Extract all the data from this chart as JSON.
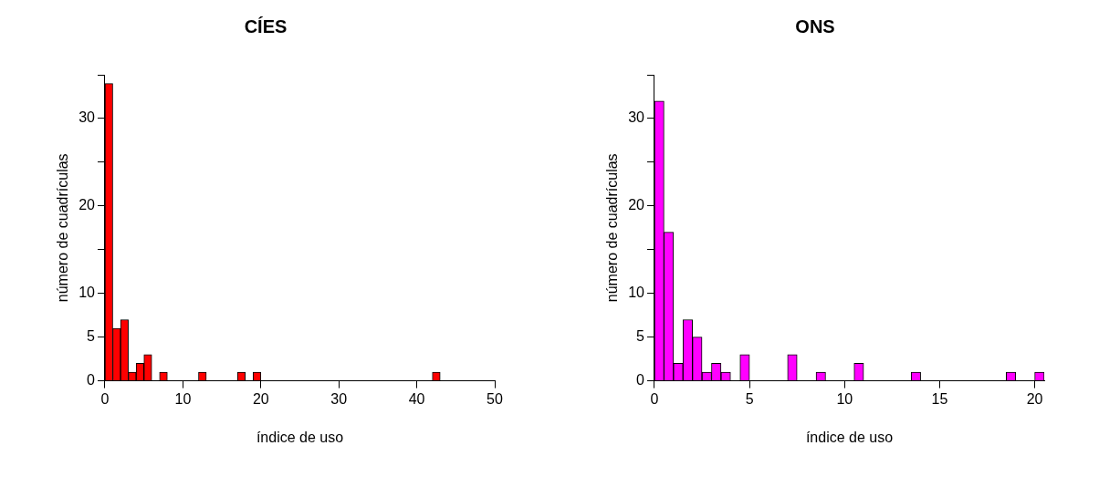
{
  "chart_data": [
    {
      "type": "histogram",
      "title": "CÍES",
      "xlabel": "índice de uso",
      "ylabel": "número de cuadrículas",
      "color": "#ff0000",
      "bins": [
        0,
        1,
        2,
        3,
        4,
        5,
        6,
        7,
        8,
        9,
        10,
        11,
        12,
        13,
        14,
        15,
        16,
        17,
        18,
        19,
        20,
        21,
        22,
        23,
        24,
        25,
        26,
        27,
        28,
        29,
        30,
        31,
        32,
        33,
        34,
        35,
        36,
        37,
        38,
        39,
        40,
        41,
        42,
        43
      ],
      "values": [
        34,
        6,
        7,
        1,
        2,
        3,
        0,
        1,
        0,
        0,
        0,
        0,
        1,
        0,
        0,
        0,
        0,
        1,
        0,
        1,
        0,
        0,
        0,
        0,
        0,
        0,
        0,
        0,
        0,
        0,
        0,
        0,
        0,
        0,
        0,
        0,
        0,
        0,
        0,
        0,
        0,
        0,
        1
      ],
      "xlim": [
        0,
        50
      ],
      "xticks": [
        0,
        10,
        20,
        30,
        40,
        50
      ],
      "ylim": [
        0,
        35
      ],
      "yticks": [
        0,
        5,
        10,
        {
          "value": 15,
          "label": null
        },
        20,
        {
          "value": 25,
          "label": null
        },
        30,
        {
          "value": 35,
          "label": null
        }
      ]
    },
    {
      "type": "histogram",
      "title": "ONS",
      "xlabel": "índice de uso",
      "ylabel": "número de cuadrículas",
      "color": "#ff00ff",
      "bins": [
        0,
        0.5,
        1,
        1.5,
        2,
        2.5,
        3,
        3.5,
        4,
        4.5,
        5,
        5.5,
        6,
        6.5,
        7,
        7.5,
        8,
        8.5,
        9,
        9.5,
        10,
        10.5,
        11,
        11.5,
        12,
        12.5,
        13,
        13.5,
        14,
        14.5,
        15,
        15.5,
        16,
        16.5,
        17,
        17.5,
        18,
        18.5,
        19,
        19.5,
        20,
        20.5
      ],
      "values": [
        32,
        17,
        2,
        7,
        5,
        1,
        2,
        1,
        0,
        3,
        0,
        0,
        0,
        0,
        3,
        0,
        0,
        1,
        0,
        0,
        0,
        2,
        0,
        0,
        0,
        0,
        0,
        1,
        0,
        0,
        0,
        0,
        0,
        0,
        0,
        0,
        0,
        1,
        0,
        0,
        1
      ],
      "xlim": [
        0,
        20.5
      ],
      "xticks": [
        0,
        5,
        10,
        15,
        20
      ],
      "ylim": [
        0,
        35
      ],
      "yticks": [
        0,
        5,
        10,
        {
          "value": 15,
          "label": null
        },
        20,
        {
          "value": 25,
          "label": null
        },
        30,
        {
          "value": 35,
          "label": null
        }
      ]
    }
  ]
}
